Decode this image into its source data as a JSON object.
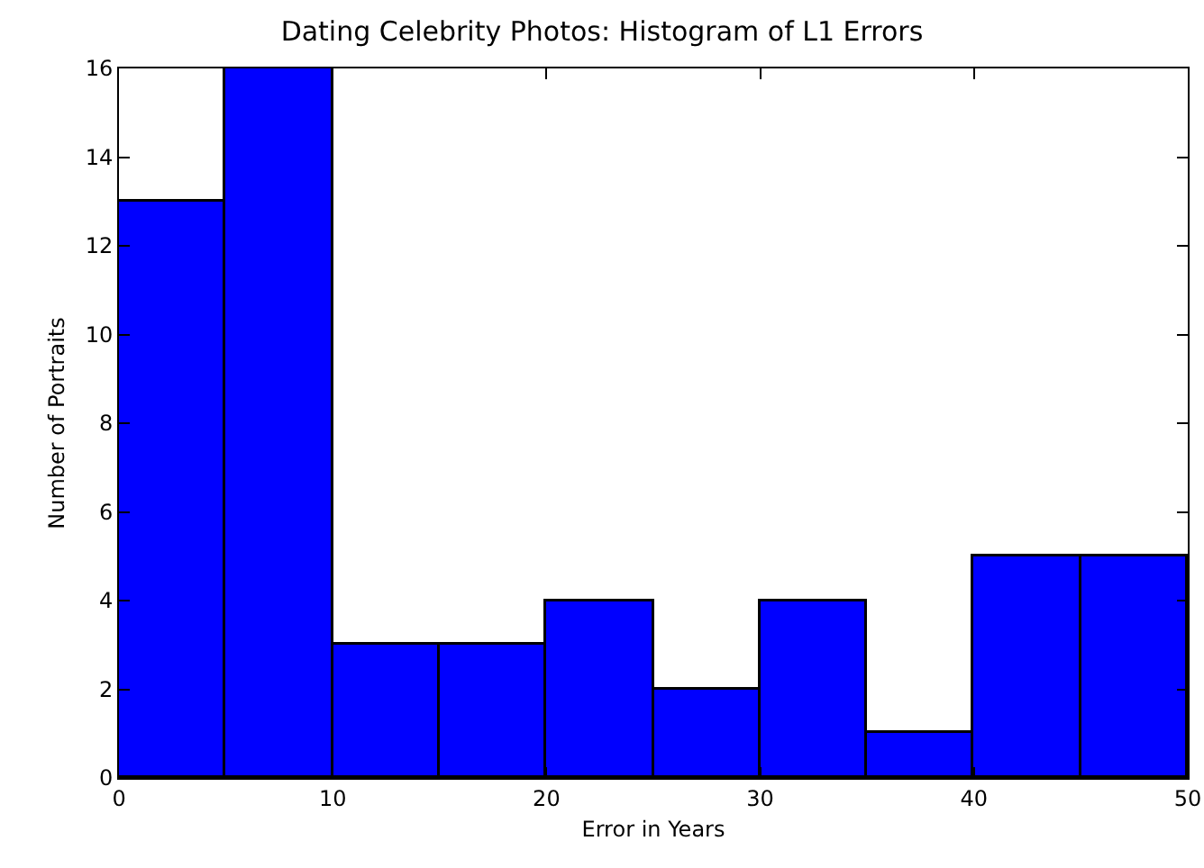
{
  "chart_data": {
    "type": "histogram",
    "title": "Dating Celebrity Photos: Histogram of L1 Errors",
    "xlabel": "Error in Years",
    "ylabel": "Number of Portraits",
    "bins": [
      0,
      5,
      10,
      15,
      20,
      25,
      30,
      35,
      40,
      45,
      50
    ],
    "values": [
      13,
      16,
      3,
      3,
      4,
      2,
      4,
      1,
      5,
      5
    ],
    "color": "#0000ff",
    "xlim": [
      0,
      50
    ],
    "xticks": [
      0,
      10,
      20,
      30,
      40,
      50
    ],
    "ylim": [
      0,
      16
    ],
    "yticks": [
      0,
      2,
      4,
      6,
      8,
      10,
      12,
      14,
      16
    ],
    "grid": false
  }
}
